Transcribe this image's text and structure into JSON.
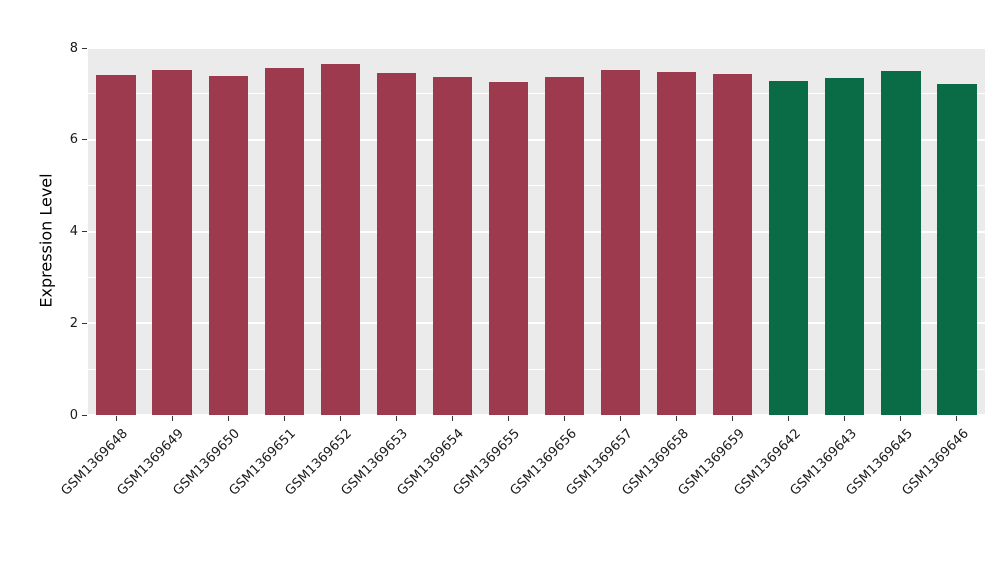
{
  "chart_data": {
    "type": "bar",
    "title": "",
    "ylabel": "Expression Level",
    "xlabel": "",
    "ylim": [
      0,
      8
    ],
    "yticks": [
      0,
      2,
      4,
      6,
      8
    ],
    "yticks_minor": [
      1,
      3,
      5,
      7
    ],
    "categories": [
      "GSM1369648",
      "GSM1369649",
      "GSM1369650",
      "GSM1369651",
      "GSM1369652",
      "GSM1369653",
      "GSM1369654",
      "GSM1369655",
      "GSM1369656",
      "GSM1369657",
      "GSM1369658",
      "GSM1369659",
      "GSM1369642",
      "GSM1369643",
      "GSM1369645",
      "GSM1369646"
    ],
    "values": [
      7.42,
      7.52,
      7.4,
      7.56,
      7.65,
      7.45,
      7.37,
      7.26,
      7.37,
      7.53,
      7.48,
      7.43,
      7.28,
      7.34,
      7.5,
      7.21
    ],
    "bar_groups": [
      0,
      0,
      0,
      0,
      0,
      0,
      0,
      0,
      0,
      0,
      0,
      0,
      1,
      1,
      1,
      1
    ],
    "group_colors": [
      "#9e3a4e",
      "#0a6b47"
    ],
    "panel_bg": "#ebebeb",
    "grid_color": "#ffffff",
    "legend": "none",
    "grid": "on"
  }
}
